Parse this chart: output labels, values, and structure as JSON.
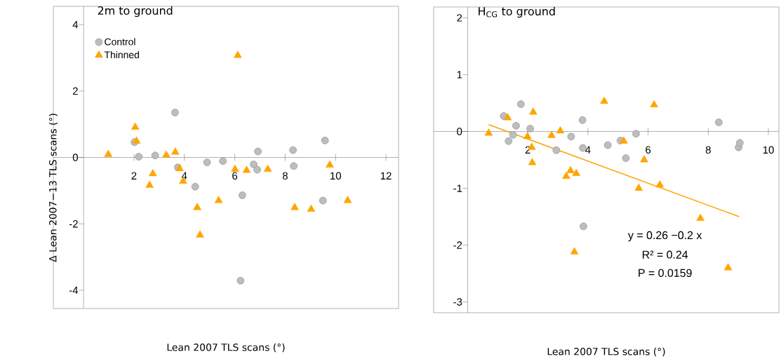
{
  "chart_data": [
    {
      "type": "scatter",
      "title": "2m to ground",
      "xlabel": "Lean 2007 TLS scans (°)",
      "ylabel": "Δ Lean 2007−13 TLS scans (°)",
      "xlim": [
        -1.2,
        12.5
      ],
      "ylim": [
        -4.55,
        4.55
      ],
      "xticks": [
        2,
        4,
        6,
        8,
        10,
        12
      ],
      "yticks": [
        -4,
        -2,
        0,
        2,
        4
      ],
      "legend": "top left",
      "series": [
        {
          "name": "Control",
          "color": "#bdbdbd",
          "marker": "circle",
          "x": [
            2.02,
            2.19,
            2.84,
            3.63,
            3.74,
            4.43,
            4.9,
            5.53,
            6.3,
            6.23,
            6.75,
            6.92,
            6.89,
            8.31,
            8.34,
            9.58,
            9.5
          ],
          "values": [
            0.46,
            0.02,
            0.06,
            1.35,
            -0.3,
            -0.88,
            -0.15,
            -0.11,
            -1.14,
            -3.71,
            -0.21,
            0.18,
            -0.37,
            0.22,
            -0.26,
            0.51,
            -1.3
          ]
        },
        {
          "name": "Thinned",
          "color": "#ffa500",
          "marker": "triangle",
          "x": [
            0.98,
            2.05,
            2.1,
            2.75,
            2.62,
            3.28,
            3.64,
            3.81,
            3.95,
            4.51,
            4.62,
            5.36,
            6.12,
            6.01,
            6.47,
            7.31,
            8.38,
            9.03,
            9.77,
            10.48
          ],
          "values": [
            0.09,
            0.91,
            0.49,
            -0.49,
            -0.84,
            0.07,
            0.16,
            -0.34,
            -0.72,
            -1.51,
            -2.34,
            -1.3,
            3.07,
            -0.36,
            -0.39,
            -0.36,
            -1.51,
            -1.56,
            -0.23,
            -1.3
          ]
        }
      ]
    },
    {
      "type": "scatter",
      "title": "H$_{CG}$ to ground",
      "xlabel": "Lean 2007 TLS scans (°)",
      "xlim": [
        -1.13,
        10.35
      ],
      "ylim": [
        -3.19,
        2.19
      ],
      "xticks": [
        2,
        4,
        6,
        8,
        10
      ],
      "yticks": [
        -3,
        -2,
        -1,
        0,
        1,
        2
      ],
      "annotations": [
        "y = 0.26 −0.2 x",
        "R² = 0.24",
        "P = 0.0159"
      ],
      "series": [
        {
          "color": "#bdbdbd",
          "marker": "circle",
          "x": [
            1.2,
            1.36,
            1.61,
            1.51,
            1.77,
            2.08,
            2.95,
            3.44,
            3.82,
            3.83,
            3.85,
            4.66,
            5.08,
            5.26,
            5.6,
            8.35,
            9.01,
            9.05
          ],
          "values": [
            0.27,
            -0.17,
            0.1,
            -0.06,
            0.48,
            0.05,
            -0.33,
            -0.09,
            0.2,
            -0.29,
            -1.67,
            -0.24,
            -0.16,
            -0.47,
            -0.04,
            0.16,
            -0.28,
            -0.2
          ]
        },
        {
          "color": "#ffa500",
          "marker": "triangle",
          "x": [
            0.7,
            1.33,
            1.99,
            2.13,
            2.18,
            2.15,
            2.79,
            3.08,
            3.28,
            3.42,
            3.61,
            3.55,
            4.54,
            5.19,
            5.87,
            5.69,
            6.2,
            6.39,
            7.74,
            8.66
          ],
          "values": [
            -0.03,
            0.24,
            -0.09,
            -0.28,
            0.34,
            -0.55,
            -0.07,
            0.01,
            -0.79,
            -0.69,
            -0.74,
            -2.12,
            0.53,
            -0.17,
            -0.5,
            -1.0,
            0.47,
            -0.94,
            -1.53,
            -2.4
          ]
        },
        {
          "type": "line",
          "color": "#ffa500",
          "marker": "none",
          "x": [
            0.7,
            9.03
          ],
          "values": [
            0.12,
            -1.5
          ]
        }
      ]
    }
  ]
}
